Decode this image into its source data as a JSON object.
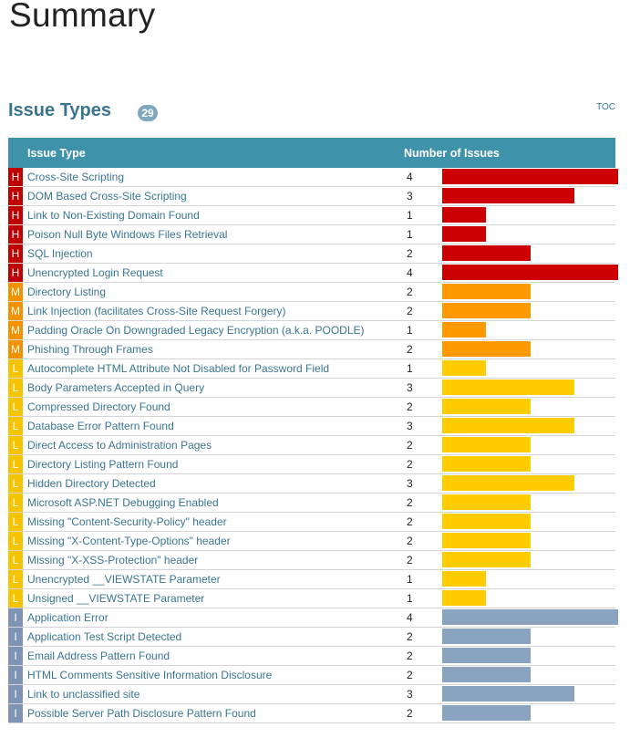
{
  "page": {
    "title": "Summary"
  },
  "section": {
    "title": "Issue Types",
    "total": "29",
    "toc_label": "TOC"
  },
  "table": {
    "headers": {
      "issue_type": "Issue Type",
      "count": "Number of Issues"
    },
    "max_count": 4,
    "severity_colors": {
      "H": "#cc0000",
      "M": "#ff9900",
      "L": "#ffcc00",
      "I": "#8aa3c0"
    },
    "rows": [
      {
        "severity": "H",
        "name": "Cross-Site Scripting",
        "count": 4
      },
      {
        "severity": "H",
        "name": "DOM Based Cross-Site Scripting",
        "count": 3
      },
      {
        "severity": "H",
        "name": "Link to Non-Existing Domain Found",
        "count": 1
      },
      {
        "severity": "H",
        "name": "Poison Null Byte Windows Files Retrieval",
        "count": 1
      },
      {
        "severity": "H",
        "name": "SQL Injection",
        "count": 2
      },
      {
        "severity": "H",
        "name": "Unencrypted Login Request",
        "count": 4
      },
      {
        "severity": "M",
        "name": "Directory Listing",
        "count": 2
      },
      {
        "severity": "M",
        "name": "Link Injection (facilitates Cross-Site Request Forgery)",
        "count": 2
      },
      {
        "severity": "M",
        "name": "Padding Oracle On Downgraded Legacy Encryption (a.k.a. POODLE)",
        "count": 1
      },
      {
        "severity": "M",
        "name": "Phishing Through Frames",
        "count": 2
      },
      {
        "severity": "L",
        "name": "Autocomplete HTML Attribute Not Disabled for Password Field",
        "count": 1
      },
      {
        "severity": "L",
        "name": "Body Parameters Accepted in Query",
        "count": 3
      },
      {
        "severity": "L",
        "name": "Compressed Directory Found",
        "count": 2
      },
      {
        "severity": "L",
        "name": "Database Error Pattern Found",
        "count": 3
      },
      {
        "severity": "L",
        "name": "Direct Access to Administration Pages",
        "count": 2
      },
      {
        "severity": "L",
        "name": "Directory Listing Pattern Found",
        "count": 2
      },
      {
        "severity": "L",
        "name": "Hidden Directory Detected",
        "count": 3
      },
      {
        "severity": "L",
        "name": "Microsoft ASP.NET Debugging Enabled",
        "count": 2
      },
      {
        "severity": "L",
        "name": "Missing \"Content-Security-Policy\" header",
        "count": 2
      },
      {
        "severity": "L",
        "name": "Missing \"X-Content-Type-Options\" header",
        "count": 2
      },
      {
        "severity": "L",
        "name": "Missing \"X-XSS-Protection\" header",
        "count": 2
      },
      {
        "severity": "L",
        "name": "Unencrypted __VIEWSTATE Parameter",
        "count": 1
      },
      {
        "severity": "L",
        "name": "Unsigned __VIEWSTATE Parameter",
        "count": 1
      },
      {
        "severity": "I",
        "name": "Application Error",
        "count": 4
      },
      {
        "severity": "I",
        "name": "Application Test Script Detected",
        "count": 2
      },
      {
        "severity": "I",
        "name": "Email Address Pattern Found",
        "count": 2
      },
      {
        "severity": "I",
        "name": "HTML Comments Sensitive Information Disclosure",
        "count": 2
      },
      {
        "severity": "I",
        "name": "Link to unclassified site",
        "count": 3
      },
      {
        "severity": "I",
        "name": "Possible Server Path Disclosure Pattern Found",
        "count": 2
      }
    ]
  }
}
